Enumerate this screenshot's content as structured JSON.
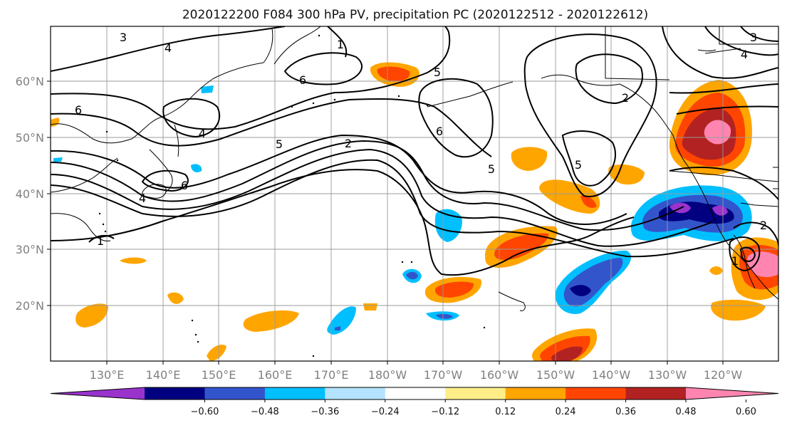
{
  "map": {
    "title": "2020122200 F084 300 hPa PV, precipitation PC (2020122512 - 2020122612)",
    "lon_ticks": [
      "130°E",
      "140°E",
      "150°E",
      "160°E",
      "170°E",
      "180°W",
      "170°W",
      "160°W",
      "150°W",
      "140°W",
      "130°W",
      "120°W"
    ],
    "lat_ticks": [
      "60°N",
      "50°N",
      "40°N",
      "30°N",
      "20°N"
    ],
    "contour_labels": [
      "3",
      "4",
      "1",
      "6",
      "6",
      "4",
      "5",
      "2",
      "6",
      "4",
      "1",
      "5",
      "6",
      "5",
      "2",
      "5",
      "2",
      "3",
      "4",
      "1"
    ]
  },
  "colorbar": {
    "colors": [
      "#9933cc",
      "#000080",
      "#3355cc",
      "#00bfff",
      "#b3e3ff",
      "#ffffff",
      "#ffee88",
      "#ffa500",
      "#ff4500",
      "#b22222",
      "#ff85b0"
    ],
    "tick_labels": [
      "−0.60",
      "−0.48",
      "−0.36",
      "−0.24",
      "−0.12",
      "0.12",
      "0.24",
      "0.36",
      "0.48",
      "0.60"
    ]
  }
}
